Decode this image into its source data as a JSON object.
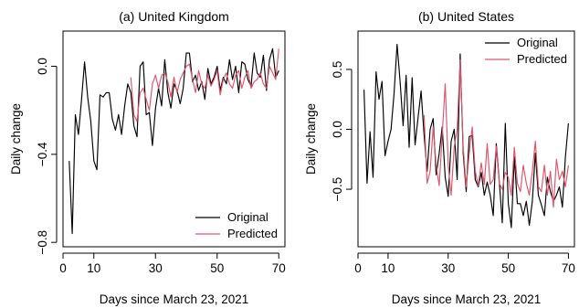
{
  "chart_data": [
    {
      "type": "line",
      "title": "(a) United Kingdom",
      "xlabel": "Days since March 23, 2021",
      "ylabel": "Daily change",
      "xlim": [
        0,
        72
      ],
      "ylim": [
        -0.82,
        0.16
      ],
      "xticks": [
        0,
        10,
        30,
        50,
        70
      ],
      "yticks": [
        -0.8,
        -0.4,
        0.0
      ],
      "ytick_labels": [
        "−0.8",
        "−0.4",
        "0.0"
      ],
      "grid": false,
      "legend_position": "bottom-right",
      "series": [
        {
          "name": "Original",
          "color": "#000000",
          "x": [
            2,
            3,
            4,
            5,
            6,
            7,
            8,
            9,
            10,
            11,
            12,
            13,
            14,
            15,
            16,
            17,
            18,
            19,
            20,
            21,
            22,
            23,
            24,
            25,
            26,
            27,
            28,
            29,
            30,
            31,
            32,
            33,
            34,
            35,
            36,
            37,
            38,
            39,
            40,
            41,
            42,
            43,
            44,
            45,
            46,
            47,
            48,
            49,
            50,
            51,
            52,
            53,
            54,
            55,
            56,
            57,
            58,
            59,
            60,
            61,
            62,
            63,
            64,
            65,
            66,
            67,
            68,
            69,
            70
          ],
          "y": [
            -0.43,
            -0.76,
            -0.22,
            -0.31,
            -0.15,
            0.02,
            -0.14,
            -0.25,
            -0.43,
            -0.47,
            -0.13,
            -0.14,
            -0.12,
            -0.12,
            -0.24,
            -0.29,
            -0.22,
            -0.31,
            -0.18,
            -0.08,
            -0.12,
            -0.27,
            -0.32,
            0.0,
            0.02,
            -0.22,
            -0.21,
            -0.36,
            -0.19,
            -0.1,
            -0.18,
            0.03,
            -0.12,
            -0.19,
            -0.08,
            -0.11,
            -0.17,
            -0.1,
            0.06,
            0.06,
            -0.07,
            -0.04,
            -0.11,
            -0.07,
            -0.15,
            -0.01,
            -0.08,
            -0.05,
            0.0,
            -0.11,
            -0.05,
            -0.08,
            0.03,
            -0.06,
            0.0,
            -0.12,
            0.02,
            0.01,
            -0.06,
            -0.09,
            0.06,
            -0.03,
            -0.05,
            0.05,
            -0.11,
            0.03,
            0.08,
            -0.05,
            -0.02
          ]
        },
        {
          "name": "Predicted",
          "color": "#DF536B",
          "x": [
            22,
            23,
            24,
            25,
            26,
            27,
            28,
            29,
            30,
            31,
            32,
            33,
            34,
            35,
            36,
            37,
            38,
            39,
            40,
            41,
            42,
            43,
            44,
            45,
            46,
            47,
            48,
            49,
            50,
            51,
            52,
            53,
            54,
            55,
            56,
            57,
            58,
            59,
            60,
            61,
            62,
            63,
            64,
            65,
            66,
            67,
            68,
            69,
            70
          ],
          "y": [
            -0.05,
            -0.22,
            -0.25,
            -0.12,
            -0.1,
            -0.15,
            -0.2,
            -0.08,
            -0.04,
            -0.1,
            -0.04,
            -0.03,
            -0.07,
            -0.14,
            -0.05,
            -0.12,
            -0.06,
            -0.03,
            0.0,
            0.01,
            -0.06,
            -0.12,
            -0.02,
            -0.08,
            -0.1,
            -0.04,
            -0.09,
            -0.06,
            -0.02,
            -0.13,
            -0.06,
            -0.03,
            -0.08,
            -0.1,
            -0.04,
            -0.02,
            -0.1,
            -0.05,
            -0.02,
            -0.1,
            -0.07,
            -0.06,
            -0.03,
            -0.08,
            -0.1,
            0.0,
            -0.03,
            -0.06,
            0.08
          ]
        }
      ]
    },
    {
      "type": "line",
      "title": "(b) United States",
      "xlabel": "Days since March 23, 2021",
      "ylabel": "Daily change",
      "xlim": [
        0,
        72
      ],
      "ylim": [
        -0.98,
        0.82
      ],
      "xticks": [
        0,
        10,
        30,
        50,
        70
      ],
      "yticks": [
        -0.5,
        0.0,
        0.5
      ],
      "ytick_labels": [
        "−0.5",
        "0.0",
        "0.5"
      ],
      "grid": false,
      "legend_position": "top-right",
      "series": [
        {
          "name": "Original",
          "color": "#000000",
          "x": [
            2,
            3,
            4,
            5,
            6,
            7,
            8,
            9,
            10,
            11,
            12,
            13,
            14,
            15,
            16,
            17,
            18,
            19,
            20,
            21,
            22,
            23,
            24,
            25,
            26,
            27,
            28,
            29,
            30,
            31,
            32,
            33,
            34,
            35,
            36,
            37,
            38,
            39,
            40,
            41,
            42,
            43,
            44,
            45,
            46,
            47,
            48,
            49,
            50,
            51,
            52,
            53,
            54,
            55,
            56,
            57,
            58,
            59,
            60,
            61,
            62,
            63,
            64,
            65,
            66,
            67,
            68,
            69,
            70
          ],
          "y": [
            0.33,
            -0.45,
            -0.02,
            -0.4,
            0.48,
            0.25,
            0.4,
            -0.22,
            -0.1,
            0.0,
            0.3,
            0.71,
            0.4,
            0.03,
            0.45,
            -0.15,
            0.43,
            -0.13,
            0.1,
            0.32,
            -0.05,
            -0.35,
            0.0,
            0.09,
            -0.38,
            -0.2,
            0.02,
            -0.4,
            -0.56,
            -0.1,
            0.0,
            -0.42,
            0.63,
            -0.2,
            -0.52,
            -0.06,
            -0.05,
            -0.42,
            -0.48,
            -0.36,
            -0.55,
            -0.44,
            -0.55,
            -0.72,
            -0.12,
            -0.43,
            -0.78,
            0.05,
            -0.62,
            -0.82,
            -0.23,
            -0.62,
            -0.62,
            -0.72,
            -0.6,
            -0.8,
            -0.6,
            -0.2,
            -0.55,
            -0.63,
            -0.72,
            -0.4,
            -0.52,
            -0.6,
            -0.55,
            -0.48,
            -0.65,
            -0.23,
            0.05
          ]
        },
        {
          "name": "Predicted",
          "color": "#DF536B",
          "x": [
            22,
            23,
            24,
            25,
            26,
            27,
            28,
            29,
            30,
            31,
            32,
            33,
            34,
            35,
            36,
            37,
            38,
            39,
            40,
            41,
            42,
            43,
            44,
            45,
            46,
            47,
            48,
            49,
            50,
            51,
            52,
            53,
            54,
            55,
            56,
            57,
            58,
            59,
            60,
            61,
            62,
            63,
            64,
            65,
            66,
            67,
            68,
            69,
            70
          ],
          "y": [
            0.12,
            -0.45,
            -0.35,
            0.02,
            -0.3,
            -0.47,
            -0.05,
            0.38,
            -0.3,
            -0.55,
            -0.15,
            0.0,
            0.58,
            -0.15,
            -0.48,
            -0.2,
            0.02,
            -0.35,
            -0.47,
            -0.28,
            -0.46,
            -0.12,
            -0.46,
            -0.42,
            -0.14,
            -0.45,
            -0.5,
            -0.36,
            -0.4,
            -0.55,
            -0.15,
            -0.45,
            -0.52,
            -0.3,
            -0.45,
            -0.55,
            -0.35,
            -0.1,
            -0.48,
            -0.52,
            -0.3,
            -0.55,
            -0.35,
            -0.65,
            -0.25,
            -0.42,
            -0.35,
            -0.48,
            -0.3
          ]
        }
      ]
    }
  ]
}
